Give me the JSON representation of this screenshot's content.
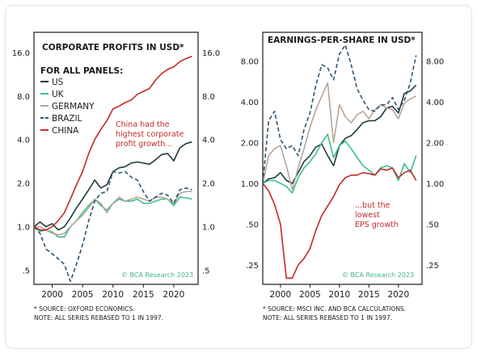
{
  "chart_data": [
    {
      "type": "line",
      "title": "CORPORATE PROFITS IN USD*",
      "scale": "log",
      "ylim": [
        0.4,
        22
      ],
      "xlim": [
        1997,
        2024
      ],
      "yticks": [
        {
          "v": 16,
          "label": "16.0"
        },
        {
          "v": 8,
          "label": "8.0"
        },
        {
          "v": 4,
          "label": "4.0"
        },
        {
          "v": 2,
          "label": "2.0"
        },
        {
          "v": 1,
          "label": "1.0"
        },
        {
          "v": 0.5,
          "label": ".5"
        }
      ],
      "xticks": [
        2000,
        2005,
        2010,
        2015,
        2020
      ],
      "x": [
        1997,
        1998,
        1999,
        2000,
        2001,
        2002,
        2003,
        2004,
        2005,
        2006,
        2007,
        2008,
        2009,
        2010,
        2011,
        2012,
        2013,
        2014,
        2015,
        2016,
        2017,
        2018,
        2019,
        2020,
        2021,
        2022,
        2023
      ],
      "series": [
        {
          "name": "US",
          "values": [
            1.0,
            1.08,
            1.0,
            1.05,
            0.95,
            1.0,
            1.15,
            1.35,
            1.55,
            1.8,
            2.1,
            1.85,
            1.95,
            2.4,
            2.55,
            2.6,
            2.75,
            2.8,
            2.75,
            2.7,
            2.9,
            3.15,
            3.2,
            2.85,
            3.5,
            3.75,
            3.85
          ]
        },
        {
          "name": "UK",
          "values": [
            1.0,
            0.93,
            0.95,
            0.92,
            0.85,
            0.85,
            1.0,
            1.1,
            1.25,
            1.4,
            1.55,
            1.4,
            1.3,
            1.45,
            1.55,
            1.5,
            1.5,
            1.55,
            1.45,
            1.45,
            1.5,
            1.55,
            1.55,
            1.4,
            1.6,
            1.58,
            1.55
          ]
        },
        {
          "name": "GERMANY",
          "values": [
            1.0,
            1.0,
            0.95,
            0.9,
            0.88,
            0.9,
            1.0,
            1.1,
            1.2,
            1.35,
            1.55,
            1.45,
            1.25,
            1.45,
            1.6,
            1.5,
            1.55,
            1.6,
            1.55,
            1.5,
            1.6,
            1.6,
            1.55,
            1.45,
            1.7,
            1.75,
            1.75
          ]
        },
        {
          "name": "BRAZIL",
          "values": [
            1.0,
            0.9,
            0.7,
            0.65,
            0.6,
            0.55,
            0.42,
            0.55,
            0.75,
            1.1,
            1.5,
            1.7,
            1.75,
            2.4,
            2.35,
            2.4,
            2.2,
            2.1,
            1.75,
            1.5,
            1.6,
            1.7,
            1.65,
            1.45,
            1.8,
            1.85,
            1.8
          ]
        },
        {
          "name": "CHINA",
          "values": [
            1.0,
            0.95,
            0.95,
            1.0,
            1.1,
            1.25,
            1.55,
            1.95,
            2.4,
            3.2,
            4.0,
            4.7,
            5.4,
            6.5,
            6.8,
            7.2,
            7.5,
            8.2,
            8.6,
            9.0,
            10.3,
            11.4,
            12.2,
            12.7,
            13.8,
            14.5,
            15.0
          ]
        }
      ],
      "annotation": [
        "China had the",
        "highest corporate",
        "profit growth..."
      ],
      "legend": {
        "header": "FOR ALL PANELS:",
        "position": "top-left"
      },
      "watermark": "© BCA Research 2023",
      "footnotes": [
        "* SOURCE: OXFORD ECONOMICS.",
        "NOTE: ALL SERIES REBASED TO 1 IN 1997."
      ]
    },
    {
      "type": "line",
      "title": "EARNINGS-PER-SHARE IN USD*",
      "scale": "log",
      "ylim": [
        0.18,
        13
      ],
      "xlim": [
        1997,
        2024
      ],
      "yticks": [
        {
          "v": 8,
          "label": "8.00"
        },
        {
          "v": 4,
          "label": "4.00"
        },
        {
          "v": 2,
          "label": "2.00"
        },
        {
          "v": 1,
          "label": "1.00"
        },
        {
          "v": 0.5,
          "label": ".50"
        },
        {
          "v": 0.25,
          "label": ".25"
        }
      ],
      "xticks": [
        2000,
        2005,
        2010,
        2015,
        2020
      ],
      "x": [
        1997,
        1998,
        1999,
        2000,
        2001,
        2002,
        2003,
        2004,
        2005,
        2006,
        2007,
        2008,
        2009,
        2010,
        2011,
        2012,
        2013,
        2014,
        2015,
        2016,
        2017,
        2018,
        2019,
        2020,
        2021,
        2022,
        2023
      ],
      "series": [
        {
          "name": "US",
          "values": [
            1.0,
            1.08,
            1.1,
            1.2,
            1.05,
            1.0,
            1.2,
            1.45,
            1.6,
            1.85,
            1.95,
            1.6,
            1.35,
            1.9,
            2.15,
            2.25,
            2.5,
            2.8,
            2.9,
            2.9,
            3.1,
            3.6,
            3.7,
            3.3,
            4.6,
            4.8,
            5.3
          ]
        },
        {
          "name": "UK",
          "values": [
            1.0,
            1.05,
            1.05,
            1.0,
            0.95,
            0.85,
            1.1,
            1.3,
            1.45,
            1.65,
            2.0,
            2.3,
            1.55,
            1.9,
            2.05,
            1.8,
            1.55,
            1.35,
            1.25,
            1.15,
            1.3,
            1.35,
            1.3,
            1.05,
            1.4,
            1.2,
            1.6
          ]
        },
        {
          "name": "GERMANY",
          "values": [
            1.0,
            1.6,
            1.8,
            1.9,
            1.35,
            0.9,
            1.3,
            1.8,
            2.6,
            3.5,
            4.4,
            5.5,
            2.0,
            3.8,
            3.1,
            2.8,
            3.2,
            3.4,
            3.0,
            3.5,
            3.8,
            3.6,
            3.5,
            3.0,
            3.9,
            4.2,
            4.4
          ]
        },
        {
          "name": "BRAZIL",
          "values": [
            1.0,
            2.9,
            3.4,
            2.1,
            1.8,
            1.9,
            1.6,
            2.5,
            3.3,
            5.3,
            7.5,
            7.1,
            5.8,
            9.0,
            10.5,
            7.5,
            5.0,
            4.1,
            3.5,
            3.4,
            3.8,
            3.8,
            4.3,
            3.5,
            4.1,
            5.5,
            8.8
          ]
        },
        {
          "name": "CHINA",
          "values": [
            1.0,
            0.88,
            0.7,
            0.5,
            0.2,
            0.2,
            0.25,
            0.28,
            0.33,
            0.45,
            0.58,
            0.68,
            0.8,
            0.98,
            1.1,
            1.15,
            1.15,
            1.2,
            1.18,
            1.15,
            1.28,
            1.25,
            1.3,
            1.1,
            1.2,
            1.25,
            1.05
          ]
        }
      ],
      "annotation": [
        "...but the",
        "lowest",
        "EPS growth"
      ],
      "watermark": "© BCA Research 2023",
      "footnotes": [
        "* SOURCE: MSCI INC. AND BCA CALCULATIONS.",
        "NOTE: ALL SERIES REBASED TO 1 IN 1997."
      ]
    }
  ],
  "colors": {
    "US": "#1f3a3d",
    "UK": "#3dbf8f",
    "GERMANY": "#b8a598",
    "BRAZIL": "#2c5570",
    "CHINA": "#c22a28",
    "annotation": "#c22a28",
    "watermark": "#3db58a",
    "frame": "#1a1a1a",
    "panel_bg": "#ffffff"
  }
}
